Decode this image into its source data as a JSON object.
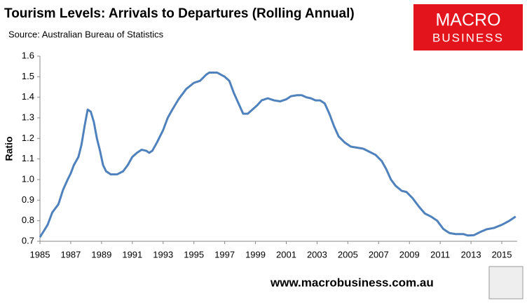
{
  "chart_data": {
    "type": "line",
    "title": "Tourism Levels: Arrivals to Departures (Rolling Annual)",
    "subtitle": "Source: Australian Bureau of Statistics",
    "y_label": "Ratio",
    "x": [
      1985.0,
      1985.5,
      1985.8,
      1986.2,
      1986.5,
      1986.8,
      1987.0,
      1987.2,
      1987.5,
      1987.7,
      1987.9,
      1988.1,
      1988.3,
      1988.5,
      1988.7,
      1988.9,
      1989.1,
      1989.3,
      1989.6,
      1990.0,
      1990.4,
      1990.7,
      1991.0,
      1991.3,
      1991.6,
      1991.9,
      1992.1,
      1992.3,
      1992.6,
      1993.0,
      1993.3,
      1993.6,
      1994.0,
      1994.5,
      1995.0,
      1995.4,
      1995.8,
      1996.0,
      1996.5,
      1997.0,
      1997.3,
      1997.6,
      1997.9,
      1998.2,
      1998.5,
      1998.8,
      1999.1,
      1999.4,
      1999.8,
      2000.2,
      2000.6,
      2001.0,
      2001.3,
      2001.7,
      2002.0,
      2002.3,
      2002.6,
      2002.9,
      2003.2,
      2003.5,
      2003.8,
      2004.1,
      2004.4,
      2004.8,
      2005.2,
      2005.6,
      2006.0,
      2006.4,
      2006.8,
      2007.2,
      2007.5,
      2007.8,
      2008.1,
      2008.5,
      2008.8,
      2009.2,
      2009.6,
      2010.0,
      2010.4,
      2010.8,
      2011.2,
      2011.6,
      2012.0,
      2012.5,
      2012.8,
      2013.2,
      2013.6,
      2014.0,
      2014.5,
      2015.0,
      2015.5,
      2015.9
    ],
    "series": [
      {
        "name": "Ratio",
        "color": "#4f81bd",
        "values": [
          0.72,
          0.78,
          0.84,
          0.88,
          0.95,
          1.0,
          1.03,
          1.07,
          1.11,
          1.17,
          1.26,
          1.34,
          1.33,
          1.28,
          1.2,
          1.14,
          1.07,
          1.04,
          1.025,
          1.025,
          1.04,
          1.07,
          1.11,
          1.13,
          1.145,
          1.14,
          1.13,
          1.14,
          1.18,
          1.24,
          1.3,
          1.34,
          1.39,
          1.44,
          1.47,
          1.48,
          1.51,
          1.52,
          1.52,
          1.5,
          1.48,
          1.42,
          1.37,
          1.32,
          1.32,
          1.34,
          1.36,
          1.385,
          1.395,
          1.385,
          1.38,
          1.39,
          1.405,
          1.41,
          1.41,
          1.4,
          1.395,
          1.385,
          1.385,
          1.37,
          1.32,
          1.26,
          1.21,
          1.18,
          1.16,
          1.155,
          1.15,
          1.135,
          1.12,
          1.09,
          1.05,
          1.0,
          0.97,
          0.945,
          0.94,
          0.91,
          0.87,
          0.835,
          0.82,
          0.8,
          0.76,
          0.74,
          0.735,
          0.735,
          0.728,
          0.73,
          0.745,
          0.758,
          0.765,
          0.78,
          0.8,
          0.82
        ]
      }
    ],
    "xlim": [
      1985,
      2016
    ],
    "xticks": [
      1985,
      1987,
      1989,
      1991,
      1993,
      1995,
      1997,
      1999,
      2001,
      2003,
      2005,
      2007,
      2009,
      2011,
      2013,
      2015
    ],
    "ylim": [
      0.7,
      1.6
    ],
    "yticks": [
      0.7,
      0.8,
      0.9,
      {
        "value": 1,
        "label": "1.0"
      },
      1.1,
      1.2,
      1.3,
      1.4,
      1.5,
      1.6
    ],
    "grid": false
  },
  "logo": {
    "line1": "MACRO",
    "line2": "BUSINESS"
  },
  "footer": "www.macrobusiness.com.au"
}
